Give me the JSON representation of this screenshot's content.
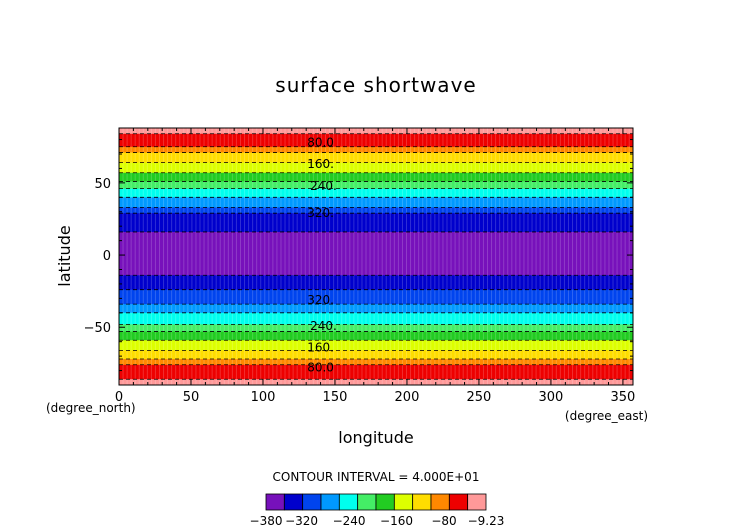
{
  "chart_data": {
    "type": "heatmap",
    "title": "surface shortwave",
    "xlabel": "longitude",
    "ylabel": "latitude",
    "x_unit": "(degree_east)",
    "y_unit": "(degree_north)",
    "xlim": [
      0,
      357
    ],
    "ylim": [
      -90,
      88
    ],
    "x_ticks": [
      0,
      50,
      100,
      150,
      200,
      250,
      300,
      350
    ],
    "y_ticks": [
      -50,
      0,
      50
    ],
    "contour_interval_text": "CONTOUR INTERVAL = 4.000E+01",
    "value_range": [
      -380,
      -9.23
    ],
    "contour_levels": [
      -360,
      -320,
      -280,
      -240,
      -200,
      -160,
      -120,
      -80,
      -40
    ],
    "contour_labels": [
      {
        "text": "80.0",
        "lon": 140,
        "lat": 78
      },
      {
        "text": "160.",
        "lon": 140,
        "lat": 63
      },
      {
        "text": "240.",
        "lon": 142,
        "lat": 48
      },
      {
        "text": "320.",
        "lon": 140,
        "lat": 29
      },
      {
        "text": "320.",
        "lon": 140,
        "lat": -31
      },
      {
        "text": "240.",
        "lon": 142,
        "lat": -49
      },
      {
        "text": "160.",
        "lon": 140,
        "lat": -64
      },
      {
        "text": "80.0",
        "lon": 140,
        "lat": -78
      }
    ],
    "bands_north_to_south": [
      {
        "lat_top": 88,
        "lat_bottom": 84,
        "color": "#ff9999"
      },
      {
        "lat_top": 84,
        "lat_bottom": 75,
        "color": "#ee0000"
      },
      {
        "lat_top": 75,
        "lat_bottom": 71,
        "color": "#ff8800"
      },
      {
        "lat_top": 71,
        "lat_bottom": 64,
        "color": "#ffdd00"
      },
      {
        "lat_top": 64,
        "lat_bottom": 57,
        "color": "#ddff00"
      },
      {
        "lat_top": 57,
        "lat_bottom": 51,
        "color": "#22cc22"
      },
      {
        "lat_top": 51,
        "lat_bottom": 46,
        "color": "#44ee66"
      },
      {
        "lat_top": 46,
        "lat_bottom": 40,
        "color": "#00ffee"
      },
      {
        "lat_top": 40,
        "lat_bottom": 33,
        "color": "#0099ff"
      },
      {
        "lat_top": 33,
        "lat_bottom": 29,
        "color": "#0044ee"
      },
      {
        "lat_top": 29,
        "lat_bottom": 16,
        "color": "#0000cc"
      },
      {
        "lat_top": 16,
        "lat_bottom": -14,
        "color": "#7711bb"
      },
      {
        "lat_top": -14,
        "lat_bottom": -24,
        "color": "#0000cc"
      },
      {
        "lat_top": -24,
        "lat_bottom": -34,
        "color": "#0044ee"
      },
      {
        "lat_top": -34,
        "lat_bottom": -40,
        "color": "#0099ff"
      },
      {
        "lat_top": -40,
        "lat_bottom": -48,
        "color": "#00ffee"
      },
      {
        "lat_top": -48,
        "lat_bottom": -53,
        "color": "#44ee66"
      },
      {
        "lat_top": -53,
        "lat_bottom": -59,
        "color": "#22cc22"
      },
      {
        "lat_top": -59,
        "lat_bottom": -66,
        "color": "#ddff00"
      },
      {
        "lat_top": -66,
        "lat_bottom": -72,
        "color": "#ffdd00"
      },
      {
        "lat_top": -72,
        "lat_bottom": -76,
        "color": "#ff8800"
      },
      {
        "lat_top": -76,
        "lat_bottom": -86,
        "color": "#ee0000"
      },
      {
        "lat_top": -86,
        "lat_bottom": -90,
        "color": "#ff9999"
      }
    ],
    "colorbar": {
      "colors": [
        "#7711bb",
        "#0000cc",
        "#0044ee",
        "#0099ff",
        "#00ffee",
        "#44ee66",
        "#22cc22",
        "#ddff00",
        "#ffdd00",
        "#ff8800",
        "#ee0000",
        "#ff9999"
      ],
      "tick_labels": [
        "−380",
        "−320",
        "−240",
        "−160",
        "−80",
        "−9.23"
      ],
      "tick_values": [
        -380,
        -320,
        -240,
        -160,
        -80,
        -9.23
      ]
    }
  }
}
